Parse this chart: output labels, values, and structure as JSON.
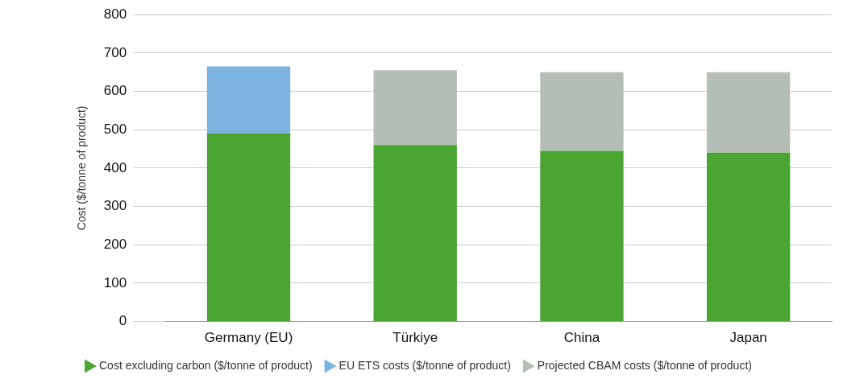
{
  "chart_data": {
    "type": "bar",
    "stacked": true,
    "ylabel": "Cost ($/tonne of product)",
    "categories": [
      "Germany (EU)",
      "Türkiye",
      "China",
      "Japan"
    ],
    "series": [
      {
        "name": "Cost excluding carbon ($/tonne of product)",
        "color": "#4aa532",
        "values": [
          490,
          460,
          445,
          440
        ]
      },
      {
        "name": "EU ETS costs ($/tonne of product)",
        "color": "#7db3e0",
        "values": [
          175,
          null,
          null,
          null
        ]
      },
      {
        "name": "Projected CBAM costs ($/tonne of product)",
        "color": "#b5beb5",
        "values": [
          null,
          195,
          205,
          210
        ]
      }
    ],
    "ylim": [
      0,
      800
    ],
    "yticks": [
      0,
      100,
      200,
      300,
      400,
      500,
      600,
      700,
      800
    ],
    "grid": "y",
    "legend": "bottom",
    "marker": "triangle"
  }
}
